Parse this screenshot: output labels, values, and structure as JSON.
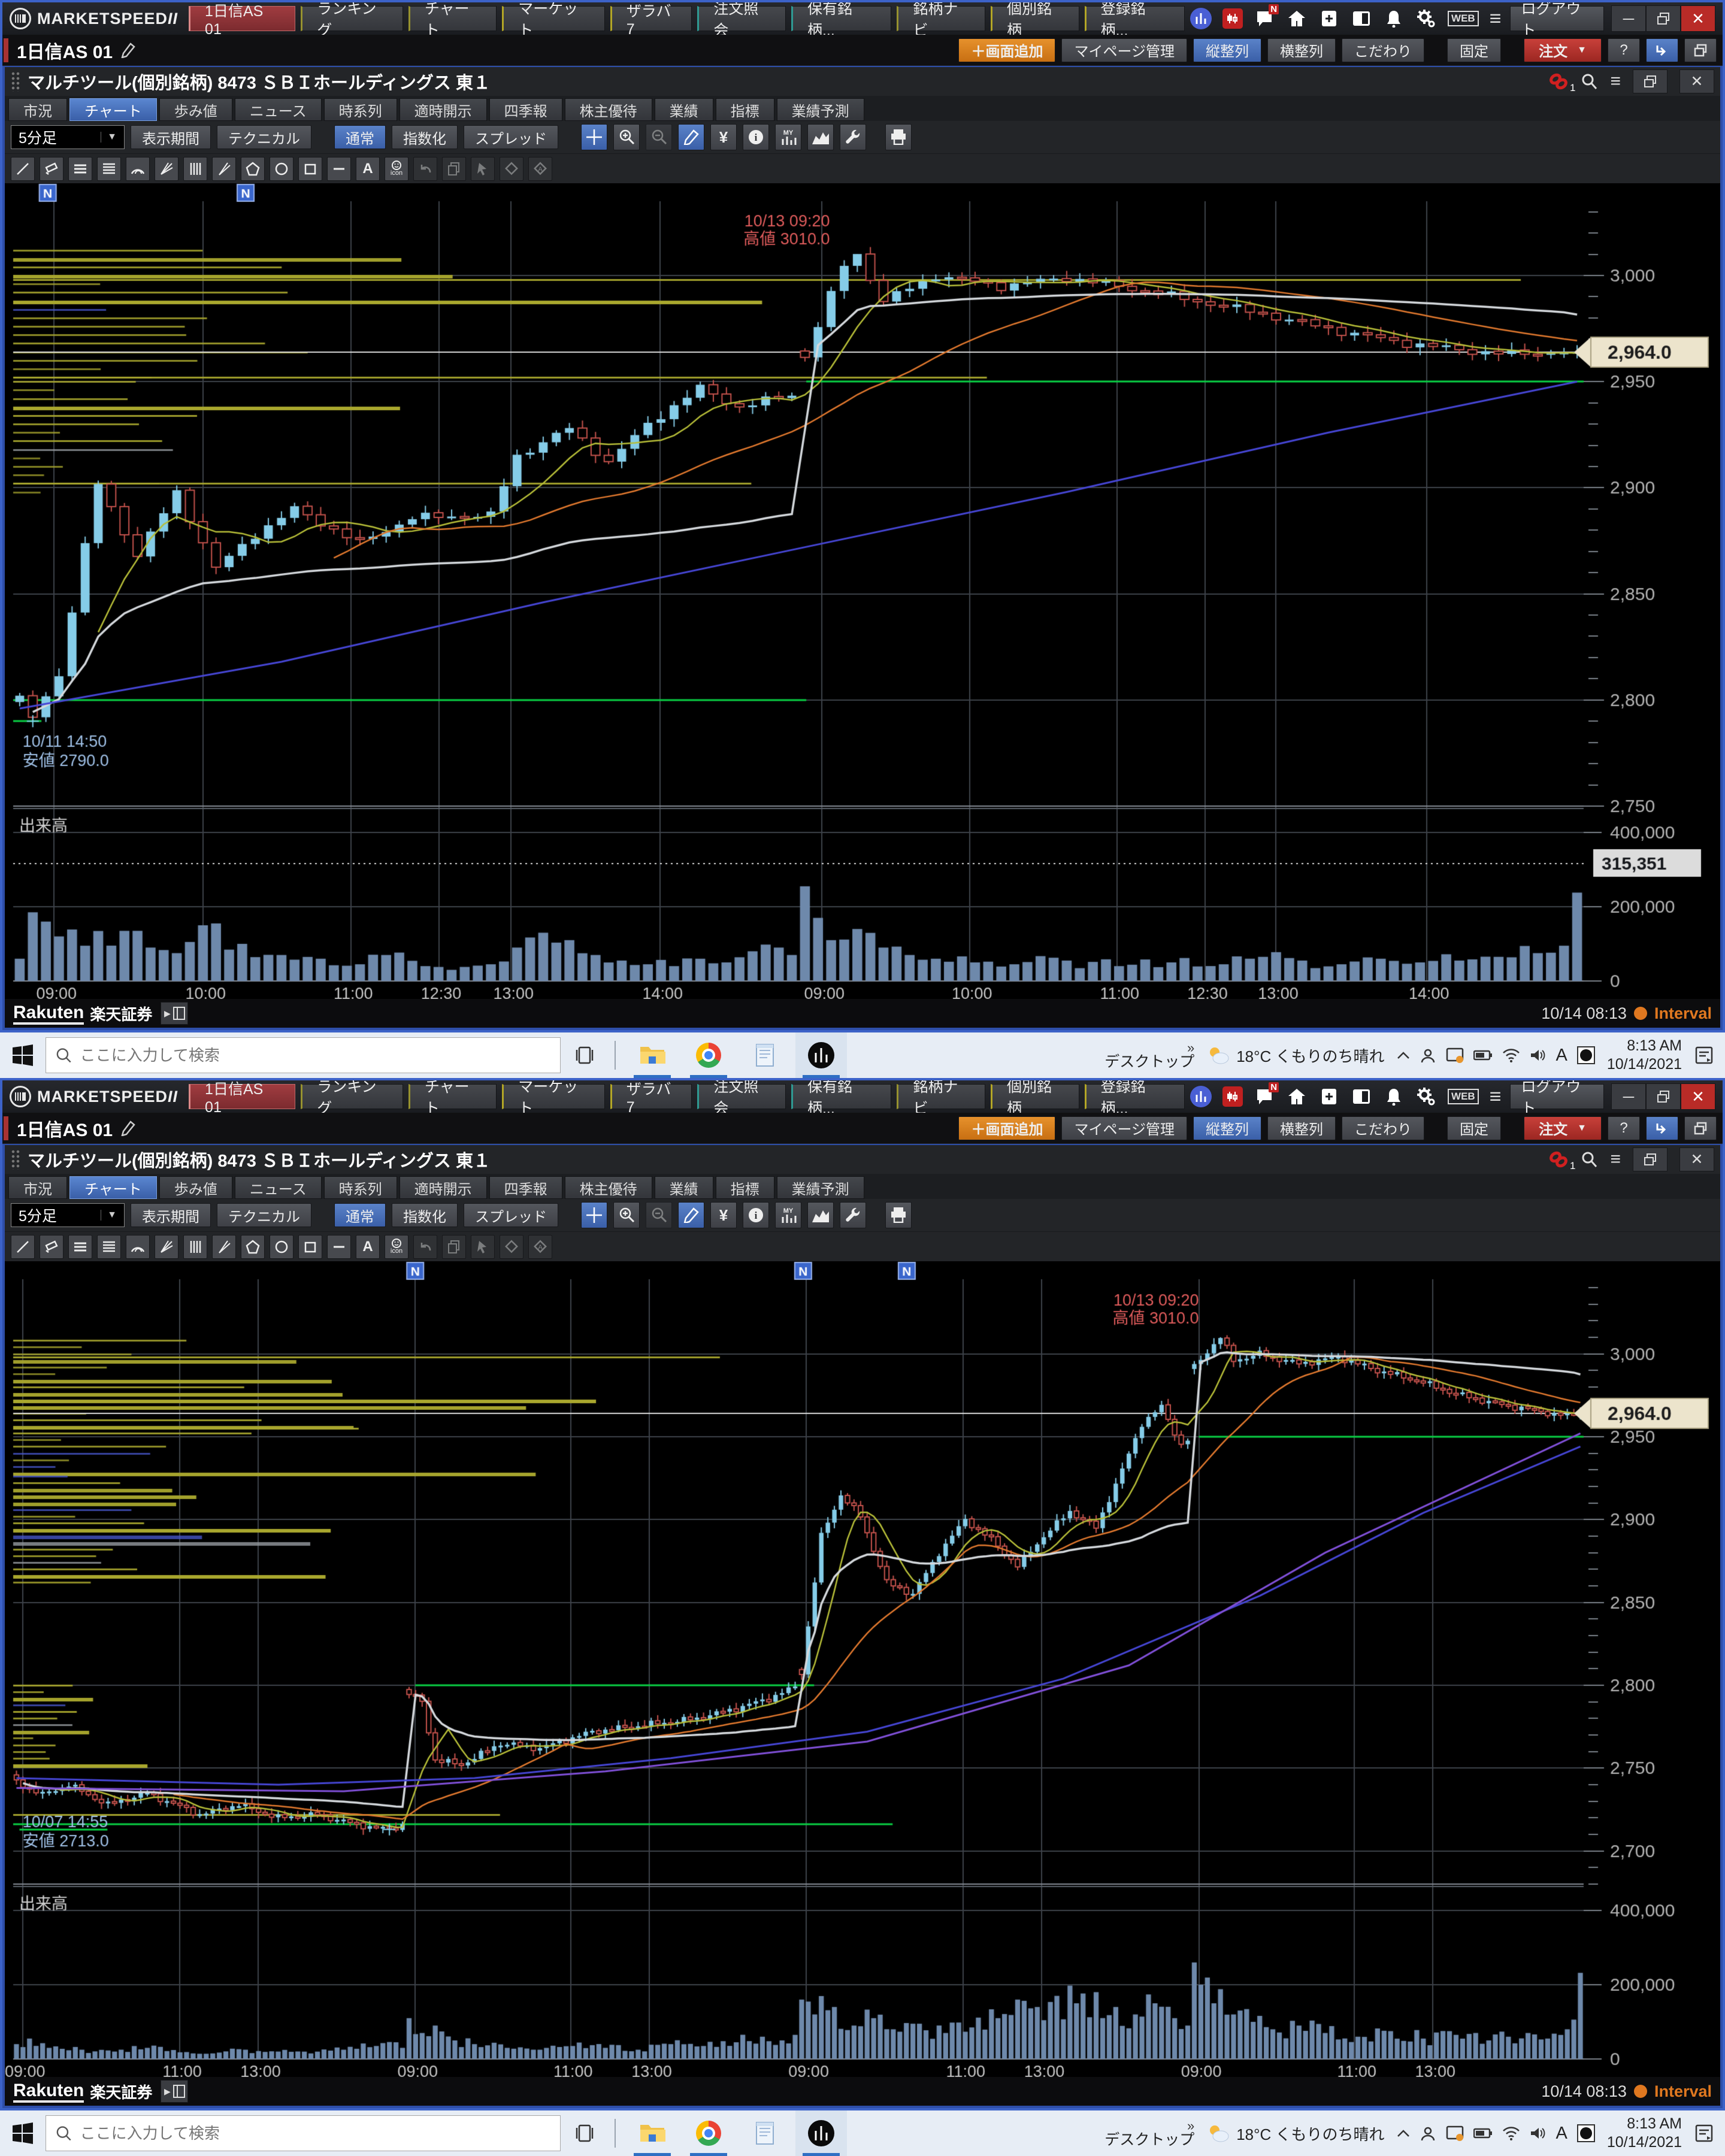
{
  "app": {
    "brand_main": "MARKETSPEED",
    "brand_sub": "II",
    "menu": [
      "1日信AS 01",
      "ランキング",
      "チャート",
      "マーケット",
      "ザラバ7",
      "注文照会",
      "保有銘柄...",
      "銘柄ナビ",
      "個別銘柄",
      "登録銘柄..."
    ],
    "logout": "ログアウト",
    "icons": {
      "web": "WEB",
      "hamburger": "≡",
      "minimize": "─",
      "close": "✕",
      "caret": "▼",
      "chat_badge": "N",
      "link_badge": "1",
      "help": "?",
      "yen": "¥",
      "my": "MY",
      "text_tool": "A",
      "icon_tool": "icon",
      "chevrons": "»",
      "tray_ime": "A",
      "news_marker": "N",
      "play": "▶"
    }
  },
  "page": {
    "title": "1日信AS 01",
    "buttons": {
      "add": "＋画面追加",
      "mypage": "マイページ管理",
      "valign": "縦整列",
      "halign": "横整列",
      "custom": "こだわり",
      "fix": "固定",
      "order": "注文"
    }
  },
  "win": {
    "title": "マルチツール(個別銘柄) 8473 ＳＢＩホールディングス 東１"
  },
  "tabs": [
    "市況",
    "チャート",
    "歩み値",
    "ニュース",
    "時系列",
    "適時開示",
    "四季報",
    "株主優待",
    "業績",
    "指標",
    "業績予測"
  ],
  "toolbar": {
    "period": "5分足",
    "range": "表示期間",
    "technical": "テクニカル",
    "normal": "通常",
    "index": "指数化",
    "spread": "スプレッド"
  },
  "status": {
    "broker": "Rakuten",
    "broker2": "楽天証券",
    "datetime": "10/14 08:13",
    "interval": "Interval"
  },
  "taskbar": {
    "search_placeholder": "ここに入力して検索",
    "desktop": "デスクトップ",
    "weather": "18°C くもりのち晴れ",
    "time": "8:13 AM",
    "date": "10/14/2021"
  },
  "charts": [
    {
      "type": "candlestick-with-volume",
      "bars": 120,
      "session_starts": [
        0,
        60
      ],
      "seed": 1.3,
      "y_min": 2750,
      "y_max": 3035,
      "minor_step": 10,
      "price_ticks": [
        [
          "3,000",
          3000
        ],
        [
          "2,950",
          2950
        ],
        [
          "2,900",
          2900
        ],
        [
          "2,850",
          2850
        ],
        [
          "2,800",
          2800
        ],
        [
          "2,750",
          2750
        ]
      ],
      "current_price": 2964,
      "price_badge": "2,964.0",
      "time_ticks": [
        [
          0.026,
          "09:00"
        ],
        [
          0.121,
          "10:00"
        ],
        [
          0.215,
          "11:00"
        ],
        [
          0.271,
          "12:30"
        ],
        [
          0.317,
          "13:00"
        ],
        [
          0.412,
          "14:00"
        ],
        [
          0.515,
          "09:00"
        ],
        [
          0.609,
          "10:00"
        ],
        [
          0.703,
          "11:00"
        ],
        [
          0.759,
          "12:30"
        ],
        [
          0.804,
          "13:00"
        ],
        [
          0.9,
          "14:00"
        ]
      ],
      "n_markers": [
        0.022,
        0.148
      ],
      "green_lines": [
        [
          2800,
          0,
          0.505
        ],
        [
          2950,
          0.505,
          1
        ],
        [
          2790,
          0,
          0.018
        ]
      ],
      "waypoints": [
        [
          0,
          2800
        ],
        [
          1,
          2792
        ],
        [
          3,
          2812
        ],
        [
          6,
          2902
        ],
        [
          9,
          2868
        ],
        [
          12,
          2898
        ],
        [
          15,
          2862
        ],
        [
          18,
          2878
        ],
        [
          21,
          2890
        ],
        [
          26,
          2874
        ],
        [
          30,
          2886
        ],
        [
          36,
          2887
        ],
        [
          38,
          2915
        ],
        [
          42,
          2928
        ],
        [
          45,
          2912
        ],
        [
          48,
          2930
        ],
        [
          52,
          2947
        ],
        [
          55,
          2938
        ],
        [
          59,
          2944
        ],
        [
          60,
          2962
        ],
        [
          63,
          3005
        ],
        [
          64,
          3010
        ],
        [
          66,
          2988
        ],
        [
          70,
          3000
        ],
        [
          75,
          2995
        ],
        [
          80,
          2999
        ],
        [
          85,
          2994
        ],
        [
          90,
          2988
        ],
        [
          95,
          2982
        ],
        [
          100,
          2975
        ],
        [
          105,
          2969
        ],
        [
          110,
          2965
        ],
        [
          114,
          2963
        ],
        [
          119,
          2964
        ]
      ],
      "force": {
        "high": [
          64,
          3010
        ],
        "low": [
          1,
          2790
        ],
        "last": 2964
      },
      "vol_waypoints": [
        [
          0,
          60000
        ],
        [
          1,
          185000
        ],
        [
          2,
          160000
        ],
        [
          3,
          120000
        ],
        [
          5,
          95000
        ],
        [
          8,
          135000
        ],
        [
          10,
          90000
        ],
        [
          12,
          75000
        ],
        [
          14,
          150000
        ],
        [
          15,
          155000
        ],
        [
          17,
          100000
        ],
        [
          20,
          70000
        ],
        [
          23,
          60000
        ],
        [
          26,
          45000
        ],
        [
          28,
          70000
        ],
        [
          31,
          40000
        ],
        [
          33,
          30000
        ],
        [
          36,
          45000
        ],
        [
          38,
          90000
        ],
        [
          40,
          130000
        ],
        [
          42,
          110000
        ],
        [
          44,
          70000
        ],
        [
          46,
          55000
        ],
        [
          48,
          45000
        ],
        [
          50,
          40000
        ],
        [
          52,
          60000
        ],
        [
          54,
          50000
        ],
        [
          56,
          80000
        ],
        [
          58,
          90000
        ],
        [
          59,
          70000
        ],
        [
          60,
          255000
        ],
        [
          61,
          170000
        ],
        [
          62,
          110000
        ],
        [
          64,
          140000
        ],
        [
          66,
          90000
        ],
        [
          68,
          70000
        ],
        [
          70,
          60000
        ],
        [
          73,
          50000
        ],
        [
          76,
          45000
        ],
        [
          80,
          55000
        ],
        [
          84,
          40000
        ],
        [
          88,
          50000
        ],
        [
          92,
          45000
        ],
        [
          95,
          65000
        ],
        [
          98,
          55000
        ],
        [
          101,
          45000
        ],
        [
          104,
          60000
        ],
        [
          107,
          50000
        ],
        [
          110,
          55000
        ],
        [
          113,
          65000
        ],
        [
          116,
          75000
        ],
        [
          118,
          95000
        ],
        [
          119,
          238000
        ]
      ],
      "vol_ticks": [
        [
          "400,000",
          400000
        ],
        [
          "200,000",
          200000
        ],
        [
          "0",
          0
        ]
      ],
      "vol_badge": [
        "315,351",
        315351
      ],
      "blue_line": [
        [
          0,
          2796
        ],
        [
          20,
          2818
        ],
        [
          40,
          2846
        ],
        [
          60,
          2872
        ],
        [
          80,
          2898
        ],
        [
          100,
          2926
        ],
        [
          119,
          2950
        ]
      ],
      "purple_line": null,
      "profile": {
        "clusters": [
          [
            3012,
            2952,
            0.33
          ],
          [
            2950,
            2898,
            0.17
          ]
        ],
        "long": [
          [
            2998,
            0.96
          ],
          [
            2952,
            0.62
          ],
          [
            2902,
            0.47
          ]
        ]
      },
      "annotations": [
        {
          "x": 0.52,
          "p": 3013,
          "pos": "above",
          "align": "right",
          "color": "#e05c5c",
          "lines": [
            "10/13 09:20",
            "高値 3010.0"
          ]
        },
        {
          "x": 0.006,
          "p": 2787,
          "pos": "below",
          "align": "left",
          "color": "#9fc0e6",
          "lines": [
            "10/11 14:50",
            "安値 2790.0"
          ]
        }
      ],
      "volume_label": "出来高"
    },
    {
      "type": "candlestick-with-volume",
      "bars": 240,
      "session_starts": [
        0,
        60,
        120,
        180
      ],
      "seed": 2.7,
      "y_min": 2680,
      "y_max": 3045,
      "minor_step": 10,
      "price_ticks": [
        [
          "3,000",
          3000
        ],
        [
          "2,950",
          2950
        ],
        [
          "2,900",
          2900
        ],
        [
          "2,850",
          2850
        ],
        [
          "2,800",
          2800
        ],
        [
          "2,750",
          2750
        ],
        [
          "2,700",
          2700
        ]
      ],
      "current_price": 2964,
      "price_badge": "2,964.0",
      "time_ticks": [
        [
          0.006,
          "09:00"
        ],
        [
          0.106,
          "11:00"
        ],
        [
          0.156,
          "13:00"
        ],
        [
          0.256,
          "09:00"
        ],
        [
          0.355,
          "11:00"
        ],
        [
          0.405,
          "13:00"
        ],
        [
          0.505,
          "09:00"
        ],
        [
          0.605,
          "11:00"
        ],
        [
          0.655,
          "13:00"
        ],
        [
          0.755,
          "09:00"
        ],
        [
          0.854,
          "11:00"
        ],
        [
          0.904,
          "13:00"
        ]
      ],
      "n_markers": [
        0.256,
        0.503,
        0.569
      ],
      "green_lines": [
        [
          2716,
          0,
          0.56
        ],
        [
          2713,
          0.004,
          0.06
        ],
        [
          2800,
          0.256,
          0.51
        ],
        [
          2950,
          0.755,
          1
        ]
      ],
      "waypoints": [
        [
          0,
          2742
        ],
        [
          4,
          2734
        ],
        [
          8,
          2740
        ],
        [
          14,
          2728
        ],
        [
          20,
          2735
        ],
        [
          28,
          2722
        ],
        [
          34,
          2728
        ],
        [
          40,
          2720
        ],
        [
          46,
          2722
        ],
        [
          52,
          2716
        ],
        [
          57,
          2713
        ],
        [
          59,
          2716
        ],
        [
          60,
          2795
        ],
        [
          62,
          2790
        ],
        [
          64,
          2755
        ],
        [
          68,
          2752
        ],
        [
          74,
          2765
        ],
        [
          80,
          2762
        ],
        [
          88,
          2772
        ],
        [
          96,
          2776
        ],
        [
          104,
          2780
        ],
        [
          110,
          2786
        ],
        [
          115,
          2792
        ],
        [
          119,
          2799
        ],
        [
          120,
          2808
        ],
        [
          123,
          2890
        ],
        [
          126,
          2915
        ],
        [
          129,
          2902
        ],
        [
          133,
          2862
        ],
        [
          137,
          2855
        ],
        [
          141,
          2880
        ],
        [
          145,
          2900
        ],
        [
          149,
          2888
        ],
        [
          153,
          2872
        ],
        [
          157,
          2890
        ],
        [
          161,
          2905
        ],
        [
          165,
          2895
        ],
        [
          169,
          2930
        ],
        [
          172,
          2958
        ],
        [
          175,
          2968
        ],
        [
          178,
          2945
        ],
        [
          179,
          2948
        ],
        [
          180,
          2992
        ],
        [
          183,
          3006
        ],
        [
          184,
          3010
        ],
        [
          186,
          2996
        ],
        [
          190,
          3000
        ],
        [
          196,
          2994
        ],
        [
          202,
          2998
        ],
        [
          208,
          2990
        ],
        [
          214,
          2984
        ],
        [
          220,
          2976
        ],
        [
          226,
          2970
        ],
        [
          232,
          2966
        ],
        [
          236,
          2963
        ],
        [
          239,
          2964
        ]
      ],
      "force": {
        "high": [
          184,
          3010
        ],
        "low": [
          57,
          2713
        ],
        "last": 2964
      },
      "vol_waypoints": [
        [
          0,
          40000
        ],
        [
          2,
          55000
        ],
        [
          5,
          30000
        ],
        [
          10,
          25000
        ],
        [
          15,
          20000
        ],
        [
          20,
          30000
        ],
        [
          25,
          18000
        ],
        [
          30,
          15000
        ],
        [
          35,
          25000
        ],
        [
          40,
          20000
        ],
        [
          45,
          15000
        ],
        [
          50,
          25000
        ],
        [
          55,
          35000
        ],
        [
          58,
          45000
        ],
        [
          59,
          30000
        ],
        [
          60,
          110000
        ],
        [
          62,
          70000
        ],
        [
          64,
          90000
        ],
        [
          67,
          50000
        ],
        [
          70,
          40000
        ],
        [
          75,
          30000
        ],
        [
          80,
          25000
        ],
        [
          85,
          35000
        ],
        [
          90,
          30000
        ],
        [
          95,
          25000
        ],
        [
          100,
          40000
        ],
        [
          105,
          35000
        ],
        [
          110,
          45000
        ],
        [
          114,
          60000
        ],
        [
          117,
          50000
        ],
        [
          119,
          65000
        ],
        [
          120,
          160000
        ],
        [
          122,
          120000
        ],
        [
          125,
          140000
        ],
        [
          128,
          90000
        ],
        [
          131,
          110000
        ],
        [
          134,
          80000
        ],
        [
          138,
          95000
        ],
        [
          142,
          70000
        ],
        [
          146,
          85000
        ],
        [
          150,
          110000
        ],
        [
          153,
          160000
        ],
        [
          156,
          140000
        ],
        [
          159,
          170000
        ],
        [
          162,
          150000
        ],
        [
          165,
          180000
        ],
        [
          168,
          140000
        ],
        [
          171,
          120000
        ],
        [
          174,
          150000
        ],
        [
          177,
          110000
        ],
        [
          179,
          90000
        ],
        [
          180,
          260000
        ],
        [
          181,
          200000
        ],
        [
          183,
          150000
        ],
        [
          186,
          120000
        ],
        [
          189,
          100000
        ],
        [
          192,
          80000
        ],
        [
          196,
          90000
        ],
        [
          200,
          70000
        ],
        [
          205,
          60000
        ],
        [
          210,
          75000
        ],
        [
          215,
          55000
        ],
        [
          220,
          65000
        ],
        [
          225,
          50000
        ],
        [
          228,
          60000
        ],
        [
          231,
          70000
        ],
        [
          234,
          55000
        ],
        [
          237,
          80000
        ],
        [
          239,
          232000
        ]
      ],
      "vol_ticks": [
        [
          "400,000",
          400000
        ],
        [
          "200,000",
          200000
        ],
        [
          "0",
          0
        ]
      ],
      "vol_badge": null,
      "blue_line": [
        [
          0,
          2744
        ],
        [
          40,
          2740
        ],
        [
          70,
          2744
        ],
        [
          100,
          2756
        ],
        [
          130,
          2772
        ],
        [
          160,
          2804
        ],
        [
          190,
          2854
        ],
        [
          215,
          2904
        ],
        [
          239,
          2944
        ]
      ],
      "purple_line": [
        [
          0,
          2738
        ],
        [
          50,
          2736
        ],
        [
          90,
          2748
        ],
        [
          130,
          2766
        ],
        [
          170,
          2812
        ],
        [
          200,
          2880
        ],
        [
          239,
          2952
        ]
      ],
      "profile": {
        "clusters": [
          [
            3008,
            2928,
            0.25
          ],
          [
            2926,
            2860,
            0.14
          ],
          [
            2800,
            2750,
            0.06
          ]
        ],
        "long": [
          [
            2998,
            0.45
          ],
          [
            2955,
            0.22
          ],
          [
            2722,
            0.31
          ]
        ]
      },
      "annotations": [
        {
          "x": 0.755,
          "p": 3016,
          "pos": "above",
          "align": "right",
          "color": "#e05c5c",
          "lines": [
            "10/13 09:20",
            "高値 3010.0"
          ]
        },
        {
          "x": 0.006,
          "p": 2726,
          "pos": "below",
          "align": "left",
          "color": "#9fc0e6",
          "lines": [
            "10/07 14:55",
            "安値 2713.0"
          ]
        }
      ],
      "volume_label": "出来高"
    }
  ]
}
